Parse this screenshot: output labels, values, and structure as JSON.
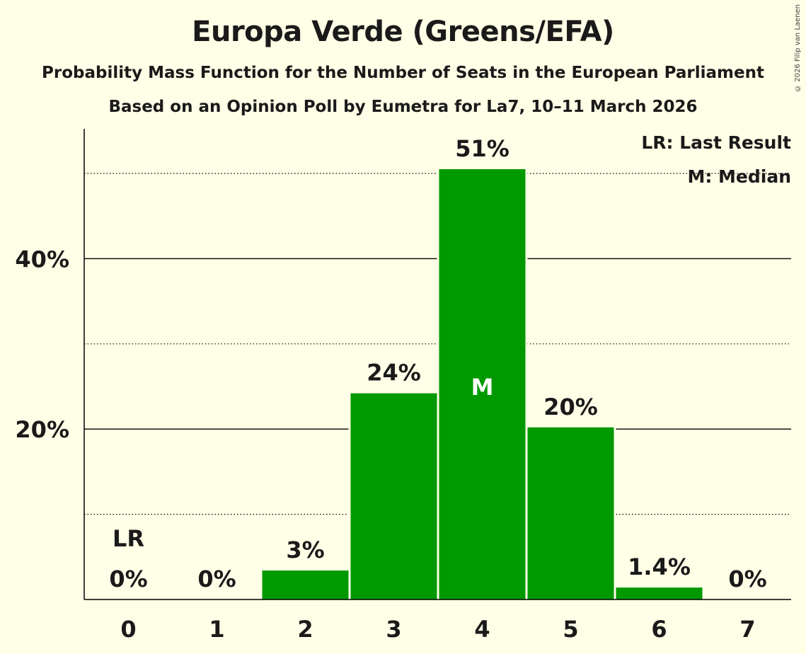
{
  "copyright": "© 2026 Filip van Laenen",
  "chart_data": {
    "type": "bar",
    "title": "Europa Verde (Greens/EFA)",
    "subtitle": "Probability Mass Function for the Number of Seats in the European Parliament",
    "subtitle2": "Based on an Opinion Poll by Eumetra for La7, 10–11 March 2026",
    "categories": [
      "0",
      "1",
      "2",
      "3",
      "4",
      "5",
      "6",
      "7"
    ],
    "values": [
      0,
      0,
      3.4,
      24.2,
      50.5,
      20.2,
      1.4,
      0
    ],
    "value_labels": [
      "0%",
      "0%",
      "3%",
      "24%",
      "51%",
      "20%",
      "1.4%",
      "0%"
    ],
    "ylim": [
      0,
      55
    ],
    "yticks": [
      {
        "value": 20,
        "label": "20%"
      },
      {
        "value": 40,
        "label": "40%"
      }
    ],
    "minor_gridlines": [
      10,
      30,
      50
    ],
    "last_result_index": 0,
    "last_result_marker": "LR",
    "median_index": 4,
    "median_marker": "M",
    "legend": [
      "LR: Last Result",
      "M: Median"
    ],
    "legend_position": "top-right",
    "bar_color": "#009900"
  }
}
